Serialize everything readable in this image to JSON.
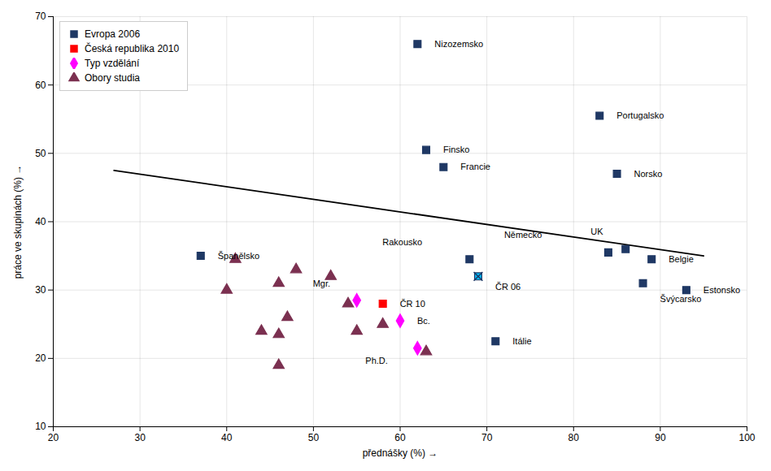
{
  "chart_data": {
    "type": "scatter",
    "xlabel": "přednášky (%)",
    "ylabel": "práce ve skupinách (%)",
    "xlim": [
      20,
      100
    ],
    "ylim": [
      10,
      70
    ],
    "xticks": [
      20,
      30,
      40,
      50,
      60,
      70,
      80,
      90,
      100
    ],
    "yticks": [
      10,
      20,
      30,
      40,
      50,
      60,
      70
    ],
    "grid": true,
    "legend": "upper left",
    "series": [
      {
        "name": "Evropa 2006",
        "color": "#1F3864",
        "marker": "square",
        "x": [
          37,
          62,
          63,
          65,
          68,
          69,
          71,
          83,
          84,
          85,
          86,
          88,
          89,
          93
        ],
        "values": [
          35,
          66,
          50.5,
          48,
          34.5,
          32,
          22.5,
          55.5,
          35.5,
          47,
          36,
          31,
          34.5,
          30
        ],
        "colors": [
          "#1F3864",
          "#1F3864",
          "#1F3864",
          "#1F3864",
          "#1F3864",
          "#00BFFF",
          "#1F3864",
          "#1F3864",
          "#1F3864",
          "#1F3864",
          "#1F3864",
          "#1F3864",
          "#1F3864",
          "#1F3864"
        ],
        "labels": [
          "Španělsko",
          "Nizozemsko",
          "Finsko",
          "Francie",
          "Rakousko",
          "ČR 06",
          "Itálie",
          "Portugalsko",
          "Německo",
          "Norsko",
          "UK",
          "Švýcarsko",
          "Belgie",
          "Estonsko"
        ]
      },
      {
        "name": "Česká republika 2010",
        "color": "#FF0000",
        "marker": "square",
        "x": [
          58
        ],
        "values": [
          28
        ],
        "labels": [
          "ČR 10"
        ]
      },
      {
        "name": "Typ vzdělání",
        "color": "#FF00FF",
        "marker": "diamond",
        "x": [
          55,
          60,
          62
        ],
        "values": [
          28.5,
          25.5,
          21.5
        ],
        "labels": [
          "Mgr.",
          "Bc.",
          "Ph.D."
        ]
      },
      {
        "name": "Obory studia",
        "color": "#7B3050",
        "marker": "triangle",
        "x": [
          40,
          41,
          44,
          46,
          47,
          48,
          46,
          46,
          52,
          54,
          55,
          58,
          63
        ],
        "values": [
          30,
          34.5,
          24,
          31,
          26,
          33,
          23.5,
          19,
          32,
          28,
          24,
          25,
          21
        ]
      },
      {
        "type": "line",
        "color": "#000000",
        "x": [
          27,
          95
        ],
        "values": [
          47.5,
          35
        ]
      }
    ]
  }
}
